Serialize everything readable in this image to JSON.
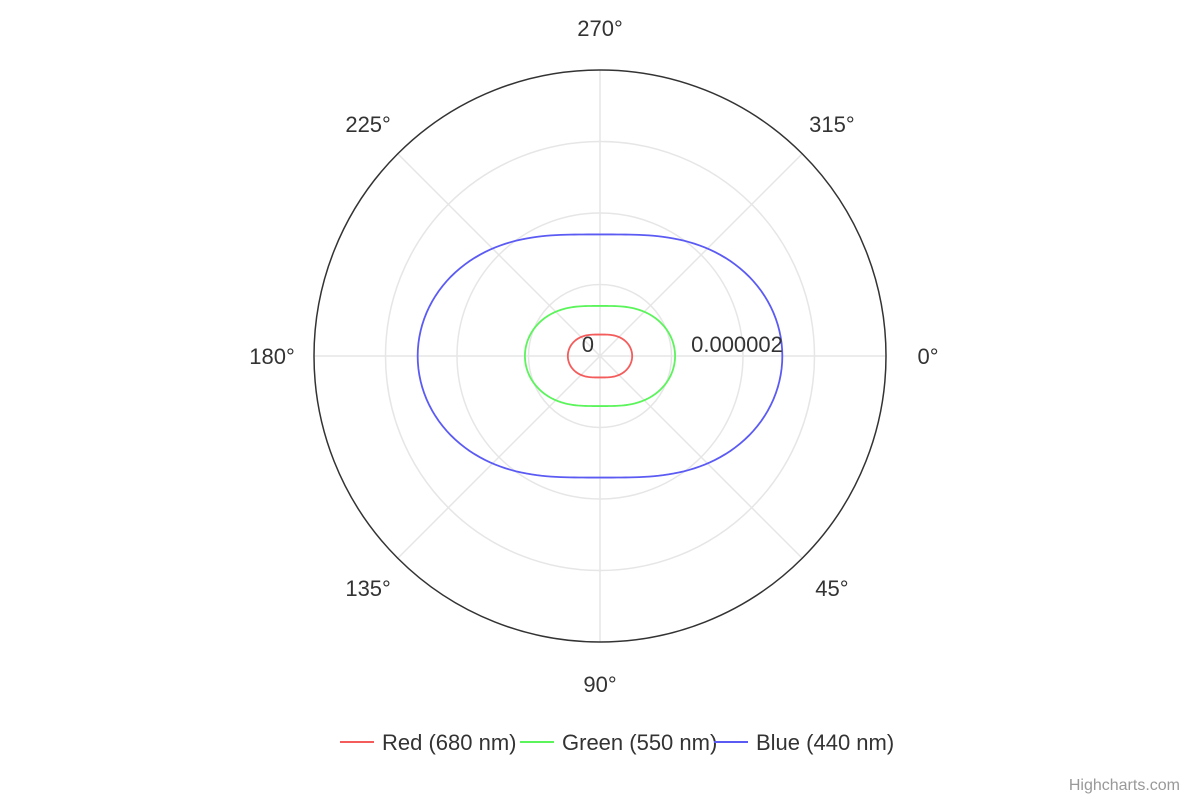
{
  "chart_data": {
    "type": "line",
    "subtype": "polar",
    "title": "",
    "xlabel": "",
    "ylabel": "",
    "angle_axis": {
      "range_deg": [
        0,
        360
      ],
      "tick_step_deg": 45,
      "tick_labels": [
        "0°",
        "45°",
        "90°",
        "135°",
        "180°",
        "225°",
        "270°",
        "315°"
      ],
      "direction": "clockwise",
      "zero_at": "right"
    },
    "radial_axis": {
      "range": [
        0,
        4e-06
      ],
      "tick_labels": [
        "0",
        "0.000002"
      ],
      "tick_values": [
        0,
        2e-06
      ]
    },
    "grid": true,
    "legend": {
      "position": "bottom-center"
    },
    "series": [
      {
        "name": "Red (680 nm)",
        "color": "#f45b5b",
        "amplitude": 3e-07,
        "shape_ratio": 0.5
      },
      {
        "name": "Green (550 nm)",
        "color": "#5bf45b",
        "amplitude": 7e-07,
        "shape_ratio": 0.5
      },
      {
        "name": "Blue (440 nm)",
        "color": "#5b5bf4",
        "amplitude": 1.7e-06,
        "shape_ratio": 0.5
      }
    ]
  },
  "credits": {
    "label": "Highcharts.com"
  }
}
